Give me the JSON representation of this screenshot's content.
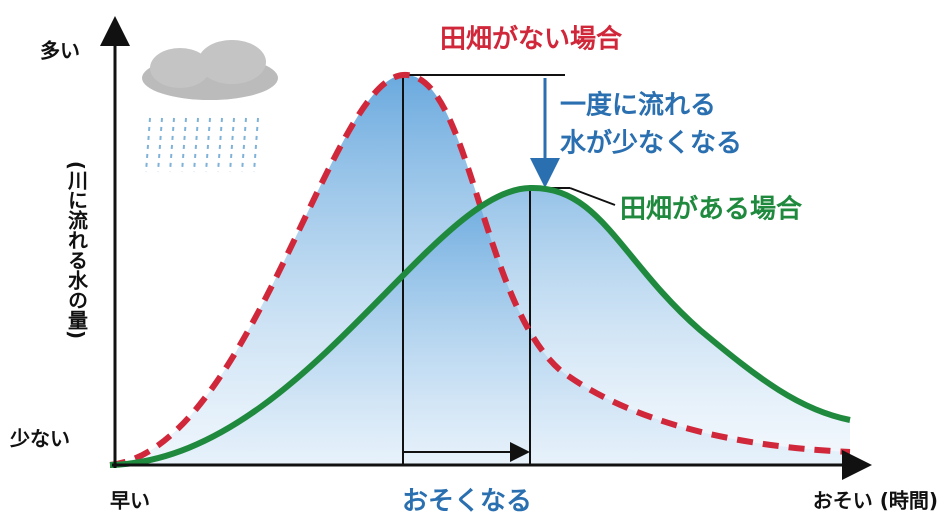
{
  "y_axis": {
    "label": "(川に流れる水の量)",
    "top": "多い",
    "bottom": "少ない"
  },
  "x_axis": {
    "start": "早い",
    "end": "おそい (時間)"
  },
  "curves": [
    {
      "label": "田畑がない場合"
    },
    {
      "label": "田畑がある場合"
    }
  ],
  "annotations": {
    "peak_drop": [
      "一度に流れる",
      "水が少なくなる"
    ],
    "delay": "おそくなる"
  }
}
